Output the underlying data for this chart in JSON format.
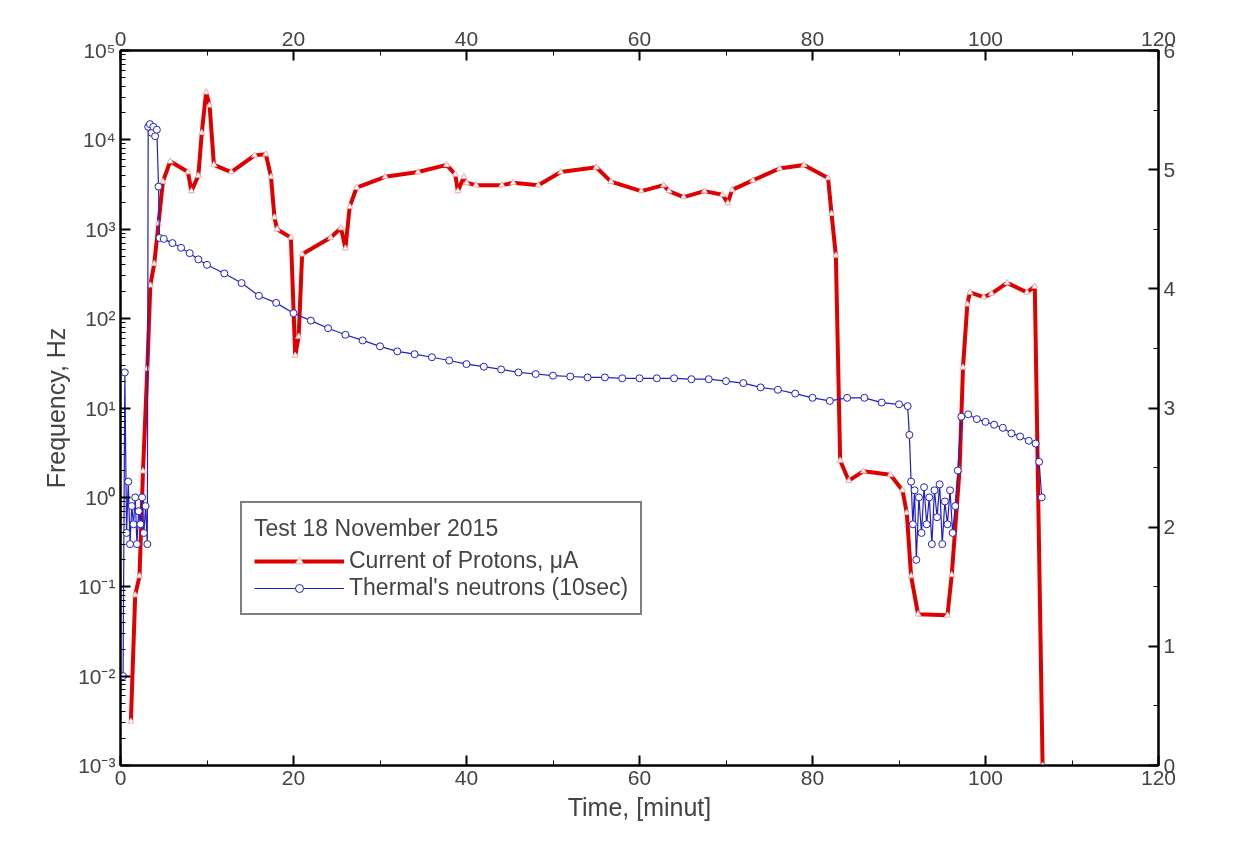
{
  "chart_data": {
    "type": "line",
    "xlabel": "Time, [minut]",
    "ylabel": "Frequency, Hz",
    "legend_title": "Test 18 November 2015",
    "legend": "left",
    "grid": false,
    "log": "y",
    "xlim": [
      0,
      120
    ],
    "xticks": [
      0,
      20,
      40,
      60,
      80,
      100,
      120
    ],
    "x2lim": [
      0,
      120
    ],
    "x2ticks": [
      0,
      20,
      40,
      60,
      80,
      100,
      120
    ],
    "ylim": [
      0.001,
      100000
    ],
    "yticks": [
      {
        "value": 0.001,
        "label": "10⁻³"
      },
      {
        "value": 0.01,
        "label": "10⁻²"
      },
      {
        "value": 0.1,
        "label": "10⁻¹"
      },
      {
        "value": 1,
        "label": "10⁰"
      },
      {
        "value": 10,
        "label": "10¹"
      },
      {
        "value": 100,
        "label": "10²"
      },
      {
        "value": 1000,
        "label": "10³"
      },
      {
        "value": 10000,
        "label": "10⁴"
      },
      {
        "value": 100000,
        "label": "10⁵"
      }
    ],
    "y2lim": [
      0,
      6
    ],
    "y2ticks": [
      0,
      1,
      2,
      3,
      4,
      5,
      6
    ],
    "series": [
      {
        "name": "Current of Protons, μA",
        "color": "#e00000",
        "axis": "y2",
        "marker": "triangle",
        "line_style": "solid",
        "x": [
          1.2,
          1.7,
          2.2,
          2.6,
          3.1,
          3.45,
          3.9,
          4.4,
          4.9,
          5.75,
          7.8,
          8.2,
          9.0,
          9.4,
          9.9,
          10.3,
          10.8,
          12.8,
          15.5,
          16.8,
          17.4,
          17.8,
          18.1,
          19.7,
          20.2,
          20.6,
          21.0,
          24.3,
          25.5,
          26.0,
          26.5,
          27.3,
          30.6,
          34.4,
          37.7,
          38.7,
          39.0,
          39.7,
          40.0,
          41.1,
          44.1,
          45.4,
          48.3,
          50.9,
          55.0,
          56.7,
          60.2,
          62.8,
          63.4,
          65.1,
          67.5,
          69.6,
          70.2,
          70.7,
          73.1,
          76.2,
          79.0,
          81.8,
          82.2,
          82.7,
          83.2,
          84.2,
          85.9,
          89.0,
          90.4,
          90.9,
          91.4,
          92.2,
          95.6,
          96.1,
          97.0,
          97.4,
          97.9,
          98.2,
          99.8,
          100.7,
          102.5,
          104.8,
          105.7,
          106.6
        ],
        "values": [
          0.37,
          1.43,
          1.59,
          2.47,
          3.33,
          4.03,
          4.21,
          4.55,
          4.9,
          5.07,
          4.98,
          4.82,
          4.95,
          5.31,
          5.65,
          5.54,
          5.04,
          4.98,
          5.12,
          5.13,
          4.94,
          4.6,
          4.5,
          4.43,
          3.44,
          3.6,
          4.29,
          4.43,
          4.51,
          4.34,
          4.69,
          4.85,
          4.94,
          4.98,
          5.04,
          4.96,
          4.82,
          4.94,
          4.89,
          4.87,
          4.87,
          4.89,
          4.87,
          4.98,
          5.02,
          4.9,
          4.82,
          4.87,
          4.82,
          4.77,
          4.82,
          4.79,
          4.72,
          4.83,
          4.91,
          5.01,
          5.04,
          4.93,
          4.63,
          4.28,
          2.56,
          2.39,
          2.47,
          2.44,
          2.31,
          2.12,
          1.59,
          1.27,
          1.26,
          1.6,
          2.48,
          3.34,
          3.87,
          3.97,
          3.93,
          3.96,
          4.05,
          3.97,
          4.02,
          0
        ]
      },
      {
        "name": "Thermal's neutrons (10sec)",
        "color": "#2020c8",
        "marker": "circle",
        "line_style": "solid",
        "x": [
          0.3,
          0.5,
          0.7,
          0.9,
          1.1,
          1.3,
          1.5,
          1.7,
          1.9,
          2.1,
          2.3,
          2.5,
          2.7,
          2.9,
          3.1,
          3.2,
          3.4,
          3.6,
          3.8,
          4.0,
          4.2,
          4.4,
          4.5,
          5,
          6,
          7,
          8,
          9,
          10,
          12,
          14,
          16,
          18,
          20,
          22,
          24,
          26,
          28,
          30,
          32,
          34,
          36,
          38,
          40,
          42,
          44,
          46,
          48,
          50,
          52,
          54,
          56,
          58,
          60,
          62,
          64,
          66,
          68,
          70,
          72,
          74,
          76,
          78,
          80,
          82,
          84,
          86,
          88,
          90,
          91,
          91.2,
          91.4,
          91.6,
          91.8,
          92,
          92.3,
          92.6,
          92.9,
          93.2,
          93.5,
          93.8,
          94.1,
          94.4,
          94.7,
          95,
          95.3,
          95.6,
          95.9,
          96.2,
          96.5,
          96.8,
          97.2,
          98,
          99,
          100,
          101,
          102,
          103,
          104,
          105,
          105.8,
          106.2,
          106.5
        ],
        "values": [
          0.01,
          25,
          0.4,
          1.5,
          0.3,
          0.8,
          0.5,
          1.0,
          0.3,
          0.7,
          0.5,
          1.0,
          0.4,
          0.8,
          0.3,
          14000,
          15000,
          12000,
          14000,
          11000,
          13000,
          3000,
          800,
          780,
          700,
          620,
          540,
          460,
          400,
          320,
          250,
          180,
          150,
          115,
          95,
          78,
          66,
          57,
          49,
          43,
          40,
          37,
          34,
          31,
          29,
          27,
          25,
          24,
          23,
          22.5,
          22,
          22,
          21.5,
          21.5,
          21.5,
          21.5,
          21,
          21,
          20,
          19,
          17,
          16,
          14.5,
          13,
          12,
          13,
          13,
          11.5,
          11,
          10.5,
          5,
          1.5,
          0.5,
          1.2,
          0.2,
          1.0,
          0.4,
          1.3,
          0.5,
          1.0,
          0.3,
          1.2,
          0.6,
          1.4,
          0.3,
          0.9,
          0.5,
          1.2,
          0.4,
          0.8,
          2,
          8,
          8.5,
          7.5,
          7,
          6.5,
          6,
          5.2,
          4.8,
          4.3,
          4,
          2.5,
          1.0
        ]
      }
    ]
  }
}
